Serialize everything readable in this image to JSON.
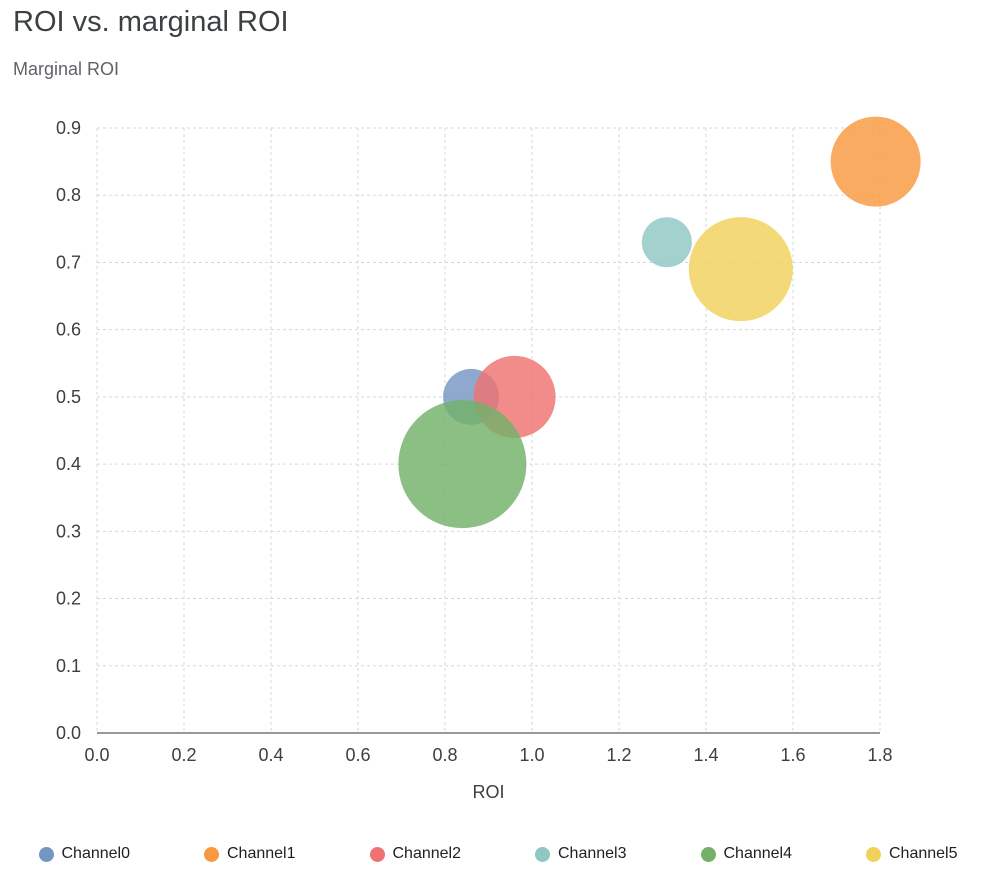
{
  "header": {
    "title": "ROI vs. marginal ROI"
  },
  "chart_data": {
    "type": "scatter",
    "title": "ROI vs. marginal ROI",
    "xlabel": "ROI",
    "ylabel": "Marginal ROI",
    "xlim": [
      0.0,
      1.8
    ],
    "ylim": [
      0.0,
      0.9
    ],
    "grid": true,
    "gridline_style": "dashed",
    "legend_position": "bottom",
    "x_ticks": [
      {
        "v": 0.0,
        "label": "0.0"
      },
      {
        "v": 0.2,
        "label": "0.2"
      },
      {
        "v": 0.4,
        "label": "0.4"
      },
      {
        "v": 0.6,
        "label": "0.6"
      },
      {
        "v": 0.8,
        "label": "0.8"
      },
      {
        "v": 1.0,
        "label": "1.0"
      },
      {
        "v": 1.2,
        "label": "1.2"
      },
      {
        "v": 1.4,
        "label": "1.4"
      },
      {
        "v": 1.6,
        "label": "1.6"
      },
      {
        "v": 1.8,
        "label": "1.8"
      }
    ],
    "y_ticks": [
      {
        "v": 0.0,
        "label": "0.0"
      },
      {
        "v": 0.1,
        "label": "0.1"
      },
      {
        "v": 0.2,
        "label": "0.2"
      },
      {
        "v": 0.3,
        "label": "0.3"
      },
      {
        "v": 0.4,
        "label": "0.4"
      },
      {
        "v": 0.5,
        "label": "0.5"
      },
      {
        "v": 0.6,
        "label": "0.6"
      },
      {
        "v": 0.7,
        "label": "0.7"
      },
      {
        "v": 0.8,
        "label": "0.8"
      },
      {
        "v": 0.9,
        "label": "0.9"
      }
    ],
    "series": [
      {
        "name": "Channel0",
        "x": 0.86,
        "y": 0.5,
        "radius_px": 28,
        "color": "#7596c2"
      },
      {
        "name": "Channel1",
        "x": 1.79,
        "y": 0.85,
        "radius_px": 45,
        "color": "#f8993e"
      },
      {
        "name": "Channel2",
        "x": 0.96,
        "y": 0.5,
        "radius_px": 41,
        "color": "#ee7370"
      },
      {
        "name": "Channel3",
        "x": 1.31,
        "y": 0.73,
        "radius_px": 25,
        "color": "#8ec7c3"
      },
      {
        "name": "Channel4",
        "x": 0.84,
        "y": 0.4,
        "radius_px": 64,
        "color": "#73b169"
      },
      {
        "name": "Channel5",
        "x": 1.48,
        "y": 0.69,
        "radius_px": 52,
        "color": "#f0d159"
      }
    ],
    "bubble_opacity": 0.82,
    "colors": {
      "gridline": "#d5d7da",
      "axis_line": "#75797d",
      "tick_label": "#3c4043",
      "title": "#3c4043",
      "axis_title": "#5f6368",
      "legend_label": "#202124"
    }
  }
}
